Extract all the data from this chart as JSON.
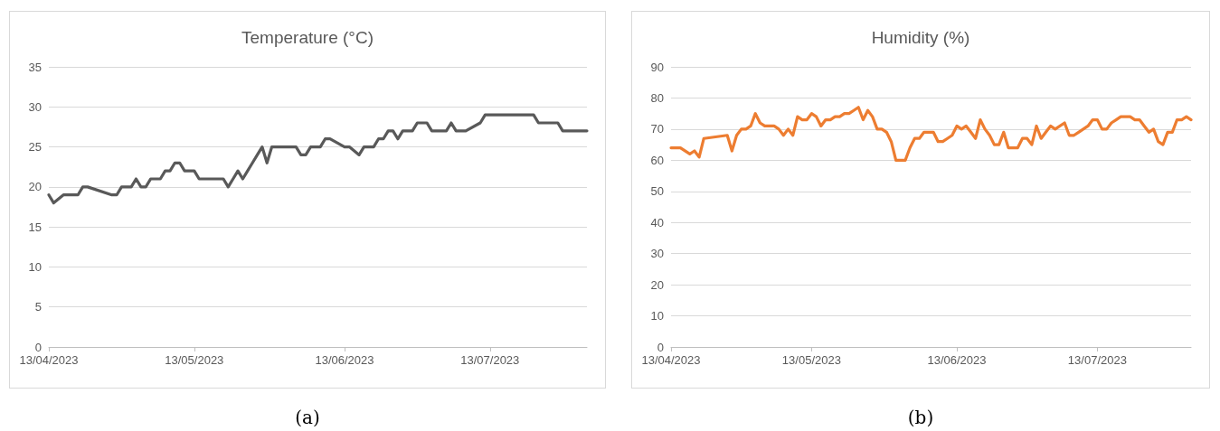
{
  "chart_data": [
    {
      "type": "line",
      "title": "Temperature (°C)",
      "grid": "y",
      "marker": "none",
      "line_style": "solid",
      "xlim": [
        "2023-04-13",
        "2023-08-02"
      ],
      "xticks": [
        {
          "value": "2023-04-13",
          "label": "13/04/2023"
        },
        {
          "value": "2023-05-13",
          "label": "13/05/2023"
        },
        {
          "value": "2023-06-13",
          "label": "13/06/2023"
        },
        {
          "value": "2023-07-13",
          "label": "13/07/2023"
        }
      ],
      "ylim": [
        0,
        35
      ],
      "yticks": [
        0,
        5,
        10,
        15,
        20,
        25,
        30,
        35
      ],
      "annotations": [
        "(a)"
      ],
      "series": [
        {
          "color": "#595959",
          "x": [
            "2023-04-13",
            "2023-04-14",
            "2023-04-16",
            "2023-04-19",
            "2023-04-20",
            "2023-04-21",
            "2023-04-26",
            "2023-04-27",
            "2023-04-28",
            "2023-04-30",
            "2023-05-01",
            "2023-05-02",
            "2023-05-03",
            "2023-05-04",
            "2023-05-06",
            "2023-05-07",
            "2023-05-08",
            "2023-05-09",
            "2023-05-10",
            "2023-05-11",
            "2023-05-13",
            "2023-05-14",
            "2023-05-19",
            "2023-05-20",
            "2023-05-21",
            "2023-05-22",
            "2023-05-23",
            "2023-05-24",
            "2023-05-25",
            "2023-05-26",
            "2023-05-27",
            "2023-05-28",
            "2023-05-29",
            "2023-06-03",
            "2023-06-04",
            "2023-06-05",
            "2023-06-06",
            "2023-06-08",
            "2023-06-09",
            "2023-06-10",
            "2023-06-13",
            "2023-06-14",
            "2023-06-16",
            "2023-06-17",
            "2023-06-19",
            "2023-06-20",
            "2023-06-21",
            "2023-06-22",
            "2023-06-23",
            "2023-06-24",
            "2023-06-25",
            "2023-06-27",
            "2023-06-28",
            "2023-06-30",
            "2023-07-01",
            "2023-07-04",
            "2023-07-05",
            "2023-07-06",
            "2023-07-08",
            "2023-07-11",
            "2023-07-12",
            "2023-07-22",
            "2023-07-23",
            "2023-07-27",
            "2023-07-28",
            "2023-08-02"
          ],
          "values": [
            19,
            18,
            19,
            19,
            20,
            20,
            19,
            19,
            20,
            20,
            21,
            20,
            20,
            21,
            21,
            22,
            22,
            23,
            23,
            22,
            22,
            21,
            21,
            20,
            21,
            22,
            21,
            22,
            23,
            24,
            25,
            23,
            25,
            25,
            24,
            24,
            25,
            25,
            26,
            26,
            25,
            25,
            24,
            25,
            25,
            26,
            26,
            27,
            27,
            26,
            27,
            27,
            28,
            28,
            27,
            27,
            28,
            27,
            27,
            28,
            29,
            29,
            28,
            28,
            27,
            27
          ]
        }
      ]
    },
    {
      "type": "line",
      "title": "Humidity (%)",
      "grid": "y",
      "marker": "none",
      "line_style": "solid",
      "xlim": [
        "2023-04-13",
        "2023-08-02"
      ],
      "xticks": [
        {
          "value": "2023-04-13",
          "label": "13/04/2023"
        },
        {
          "value": "2023-05-13",
          "label": "13/05/2023"
        },
        {
          "value": "2023-06-13",
          "label": "13/06/2023"
        },
        {
          "value": "2023-07-13",
          "label": "13/07/2023"
        }
      ],
      "ylim": [
        0,
        90
      ],
      "yticks": [
        0,
        10,
        20,
        30,
        40,
        50,
        60,
        70,
        80,
        90
      ],
      "annotations": [
        "(b)"
      ],
      "series": [
        {
          "color": "#ed7d31",
          "x": [
            "2023-04-13",
            "2023-04-15",
            "2023-04-17",
            "2023-04-18",
            "2023-04-19",
            "2023-04-20",
            "2023-04-25",
            "2023-04-26",
            "2023-04-27",
            "2023-04-28",
            "2023-04-29",
            "2023-04-30",
            "2023-05-01",
            "2023-05-02",
            "2023-05-03",
            "2023-05-05",
            "2023-05-06",
            "2023-05-07",
            "2023-05-08",
            "2023-05-09",
            "2023-05-10",
            "2023-05-11",
            "2023-05-12",
            "2023-05-13",
            "2023-05-14",
            "2023-05-15",
            "2023-05-16",
            "2023-05-17",
            "2023-05-18",
            "2023-05-19",
            "2023-05-20",
            "2023-05-21",
            "2023-05-22",
            "2023-05-23",
            "2023-05-24",
            "2023-05-25",
            "2023-05-26",
            "2023-05-27",
            "2023-05-28",
            "2023-05-29",
            "2023-05-30",
            "2023-05-31",
            "2023-06-01",
            "2023-06-02",
            "2023-06-03",
            "2023-06-04",
            "2023-06-05",
            "2023-06-06",
            "2023-06-07",
            "2023-06-08",
            "2023-06-09",
            "2023-06-10",
            "2023-06-11",
            "2023-06-12",
            "2023-06-13",
            "2023-06-14",
            "2023-06-15",
            "2023-06-16",
            "2023-06-17",
            "2023-06-18",
            "2023-06-19",
            "2023-06-20",
            "2023-06-21",
            "2023-06-22",
            "2023-06-23",
            "2023-06-24",
            "2023-06-25",
            "2023-06-26",
            "2023-06-27",
            "2023-06-28",
            "2023-06-29",
            "2023-06-30",
            "2023-07-01",
            "2023-07-02",
            "2023-07-03",
            "2023-07-04",
            "2023-07-06",
            "2023-07-07",
            "2023-07-08",
            "2023-07-09",
            "2023-07-10",
            "2023-07-11",
            "2023-07-12",
            "2023-07-13",
            "2023-07-14",
            "2023-07-15",
            "2023-07-16",
            "2023-07-17",
            "2023-07-18",
            "2023-07-19",
            "2023-07-20",
            "2023-07-21",
            "2023-07-22",
            "2023-07-23",
            "2023-07-24",
            "2023-07-25",
            "2023-07-26",
            "2023-07-27",
            "2023-07-28",
            "2023-07-29",
            "2023-07-30",
            "2023-07-31",
            "2023-08-01",
            "2023-08-02"
          ],
          "values": [
            64,
            64,
            62,
            63,
            61,
            67,
            68,
            63,
            68,
            70,
            70,
            71,
            75,
            72,
            71,
            71,
            70,
            68,
            70,
            68,
            74,
            73,
            73,
            75,
            74,
            71,
            73,
            73,
            74,
            74,
            75,
            75,
            76,
            77,
            73,
            76,
            74,
            70,
            70,
            69,
            66,
            60,
            60,
            60,
            64,
            67,
            67,
            69,
            69,
            69,
            66,
            66,
            67,
            68,
            71,
            70,
            71,
            69,
            67,
            73,
            70,
            68,
            65,
            65,
            69,
            64,
            64,
            64,
            67,
            67,
            65,
            71,
            67,
            69,
            71,
            70,
            72,
            68,
            68,
            69,
            70,
            71,
            73,
            73,
            70,
            70,
            72,
            73,
            74,
            74,
            74,
            73,
            73,
            71,
            69,
            70,
            66,
            65,
            69,
            69,
            73,
            73,
            74,
            73
          ]
        }
      ]
    }
  ]
}
